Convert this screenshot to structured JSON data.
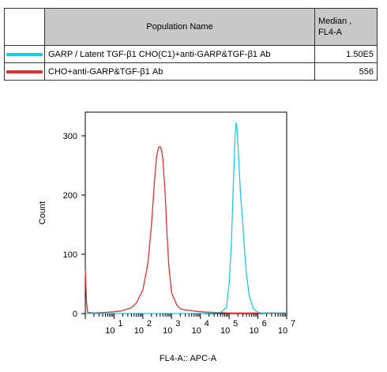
{
  "legend": {
    "header_name": "Population Name",
    "header_median_1": "Median ,",
    "header_median_2": "FL4-A",
    "rows": [
      {
        "name": "GARP / Latent TGF-β1 CHO(C1)+anti-GARP&TGF-β1 Ab",
        "median": "1.50E5",
        "color": "#1ec8e6"
      },
      {
        "name": "CHO+anti-GARP&TGF-β1 Ab",
        "median": "556",
        "color": "#e03030"
      }
    ]
  },
  "chart_data": {
    "type": "line",
    "xlabel": "FL4-A:: APC-A",
    "ylabel": "Count",
    "x_scale": "log",
    "xlim": [
      1,
      10000000
    ],
    "ylim": [
      0,
      340
    ],
    "y_ticks": [
      0,
      100,
      200,
      300
    ],
    "x_tick_labels": [
      {
        "base": "10",
        "exp": "1"
      },
      {
        "base": "10",
        "exp": "2"
      },
      {
        "base": "10",
        "exp": "3"
      },
      {
        "base": "10",
        "exp": "4"
      },
      {
        "base": "10",
        "exp": "5"
      },
      {
        "base": "10",
        "exp": "6"
      },
      {
        "base": "10",
        "exp": "7"
      }
    ],
    "series": [
      {
        "name": "CHO+anti-GARP&TGF-β1 Ab",
        "color": "#e03030",
        "points": [
          [
            1,
            75
          ],
          [
            1.1,
            20
          ],
          [
            1.2,
            2
          ],
          [
            2,
            1
          ],
          [
            5,
            2
          ],
          [
            10,
            3
          ],
          [
            20,
            5
          ],
          [
            40,
            10
          ],
          [
            60,
            18
          ],
          [
            100,
            40
          ],
          [
            150,
            85
          ],
          [
            200,
            150
          ],
          [
            250,
            220
          ],
          [
            300,
            265
          ],
          [
            350,
            280
          ],
          [
            400,
            282
          ],
          [
            450,
            275
          ],
          [
            500,
            260
          ],
          [
            600,
            200
          ],
          [
            700,
            130
          ],
          [
            800,
            80
          ],
          [
            1000,
            35
          ],
          [
            1500,
            15
          ],
          [
            2000,
            8
          ],
          [
            3000,
            6
          ],
          [
            5000,
            5
          ],
          [
            10000,
            3
          ],
          [
            30000,
            2
          ],
          [
            100000,
            1
          ],
          [
            1000000,
            1
          ],
          [
            10000000,
            1
          ]
        ]
      },
      {
        "name": "GARP / Latent TGF-β1 CHO(C1)+anti-GARP&TGF-β1 Ab",
        "color": "#1ec8e6",
        "points": [
          [
            1,
            0
          ],
          [
            1000,
            0
          ],
          [
            10000,
            0
          ],
          [
            50000,
            2
          ],
          [
            80000,
            10
          ],
          [
            100000,
            50
          ],
          [
            120000,
            120
          ],
          [
            140000,
            220
          ],
          [
            160000,
            300
          ],
          [
            175000,
            322
          ],
          [
            190000,
            310
          ],
          [
            210000,
            270
          ],
          [
            250000,
            200
          ],
          [
            300000,
            150
          ],
          [
            350000,
            100
          ],
          [
            400000,
            65
          ],
          [
            500000,
            30
          ],
          [
            700000,
            8
          ],
          [
            1000000,
            2
          ],
          [
            2000000,
            0
          ],
          [
            10000000,
            0
          ]
        ]
      }
    ]
  }
}
